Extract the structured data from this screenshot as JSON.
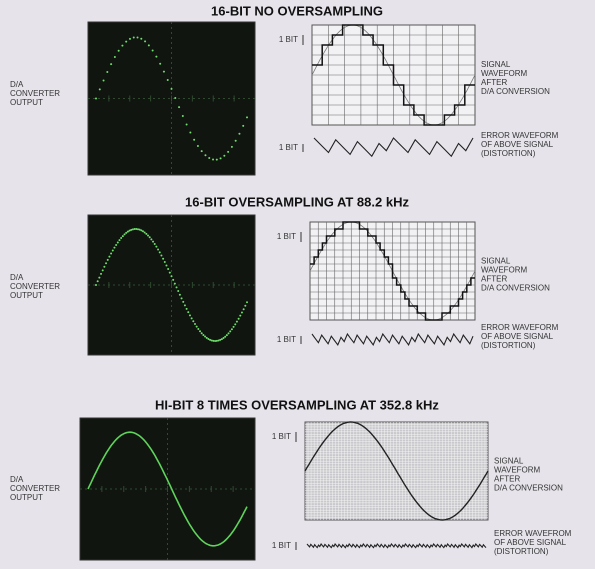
{
  "panels": [
    {
      "title": "16-BIT NO OVERSAMPLING",
      "output_label": [
        "D/A",
        "CONVERTER",
        "OUTPUT"
      ],
      "signal_bit_label": "1 BIT",
      "signal_label": [
        "SIGNAL",
        "WAVEFORM",
        "AFTER",
        "D/A CONVERSION"
      ],
      "error_bit_label": "1 BIT",
      "error_label": [
        "ERROR WAVEFORM",
        "OF ABOVE SIGNAL",
        "(DISTORTION)"
      ]
    },
    {
      "title": "16-BIT OVERSAMPLING AT 88.2 kHz",
      "output_label": [
        "D/A",
        "CONVERTER",
        "OUTPUT"
      ],
      "signal_bit_label": "1 BIT",
      "signal_label": [
        "SIGNAL",
        "WAVEFORM",
        "AFTER",
        "D/A CONVERSION"
      ],
      "error_bit_label": "1 BIT",
      "error_label": [
        "ERROR WAVEFORM",
        "OF ABOVE SIGNAL",
        "(DISTORTION)"
      ]
    },
    {
      "title": "HI-BIT 8 TIMES OVERSAMPLING AT 352.8 kHz",
      "output_label": [
        "D/A",
        "CONVERTER",
        "OUTPUT"
      ],
      "signal_bit_label": "1 BIT",
      "signal_label": [
        "SIGNAL",
        "WAVEFORM",
        "AFTER",
        "D/A CONVERSION"
      ],
      "error_bit_label": "1 BIT",
      "error_label": [
        "ERROR WAVEFROM",
        "OF ABOVE SIGNAL",
        "(DISTORTION)"
      ]
    }
  ]
}
